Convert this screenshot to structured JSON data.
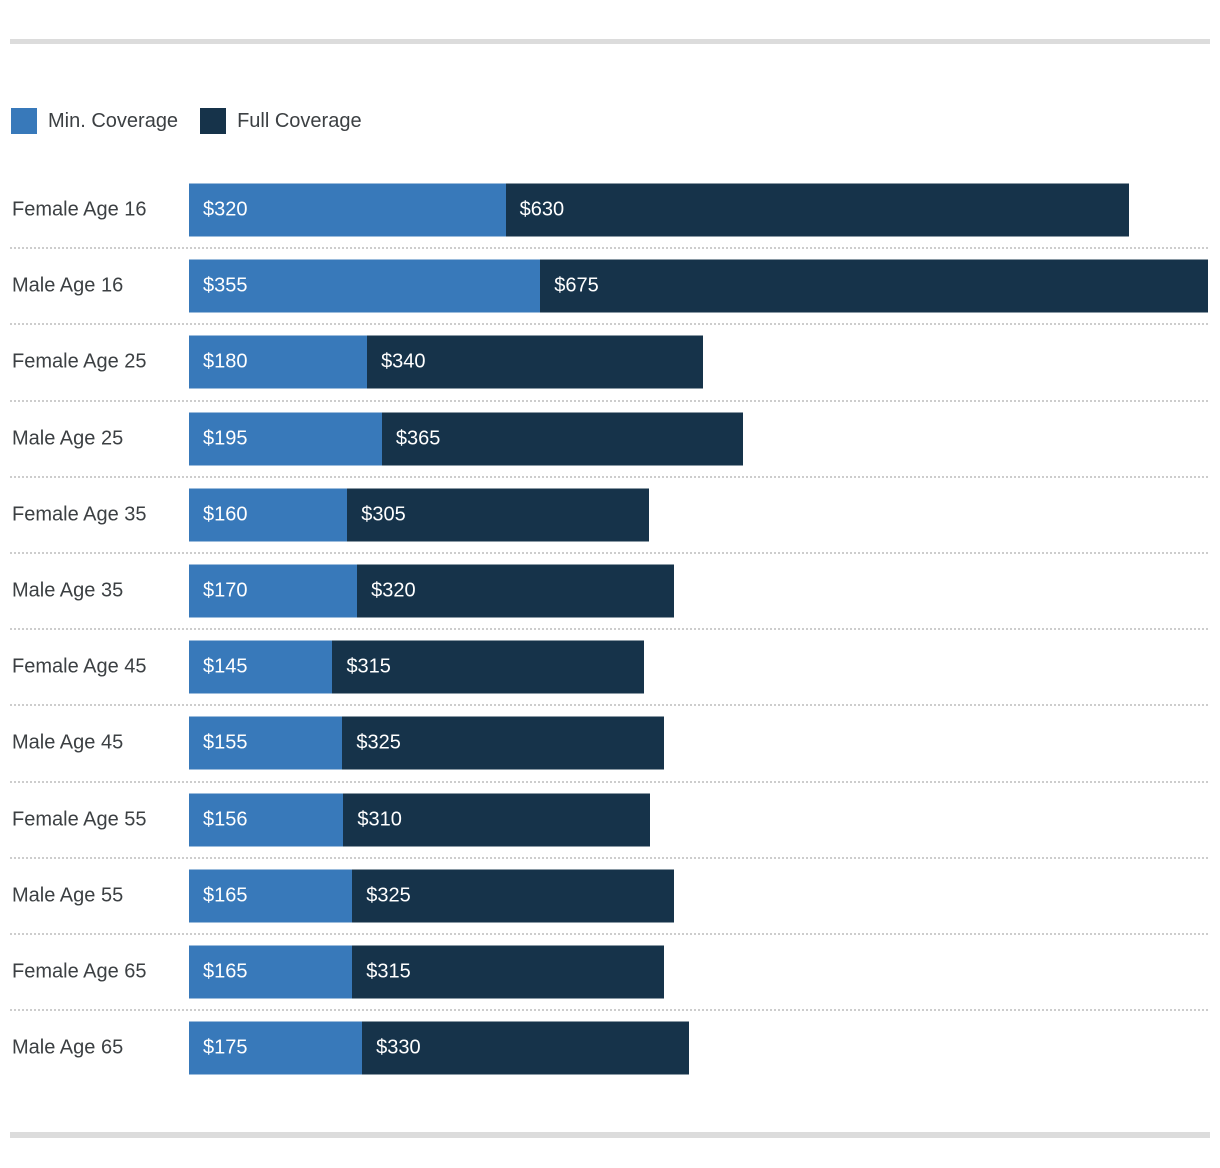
{
  "page": {
    "background_color": "#ffffff",
    "rule_color": "#dcdcdc",
    "label_text_color": "#3c4043",
    "bar_value_text_color": "#ffffff"
  },
  "legend": {
    "items": [
      {
        "label": "Min. Coverage",
        "color": "#3879ba"
      },
      {
        "label": "Full Coverage",
        "color": "#16334a"
      }
    ]
  },
  "chart_data": {
    "type": "bar",
    "orientation": "horizontal",
    "stacked": true,
    "grid": false,
    "legend_position": "top-left",
    "x_axis_max": 1030,
    "categories": [
      "Female Age 16",
      "Male Age 16",
      "Female Age 25",
      "Male Age 25",
      "Female Age 35",
      "Male Age 35",
      "Female Age 45",
      "Male Age 45",
      "Female Age 55",
      "Male Age 55",
      "Female Age 65",
      "Male Age 65"
    ],
    "series": [
      {
        "name": "Min. Coverage",
        "color": "#3879ba",
        "values": [
          320,
          355,
          180,
          195,
          160,
          170,
          145,
          155,
          156,
          165,
          165,
          175
        ],
        "labels": [
          "$320",
          "$355",
          "$180",
          "$195",
          "$160",
          "$170",
          "$145",
          "$155",
          "$156",
          "$165",
          "$165",
          "$175"
        ]
      },
      {
        "name": "Full Coverage",
        "color": "#16334a",
        "values": [
          630,
          675,
          340,
          365,
          305,
          320,
          315,
          325,
          310,
          325,
          315,
          330
        ],
        "labels": [
          "$630",
          "$675",
          "$340",
          "$365",
          "$305",
          "$320",
          "$315",
          "$325",
          "$310",
          "$325",
          "$315",
          "$330"
        ]
      }
    ]
  }
}
